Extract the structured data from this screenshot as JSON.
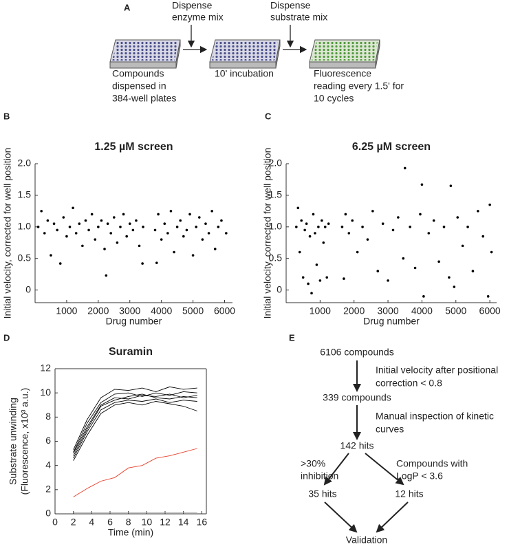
{
  "panel_a": {
    "label": "A",
    "dispense_1": [
      "Dispense",
      "enzyme mix"
    ],
    "dispense_2": [
      "Dispense",
      "substrate mix"
    ],
    "step_1": [
      "Compounds",
      "dispensed in",
      "384-well plates"
    ],
    "step_2": [
      "10' incubation"
    ],
    "step_3": [
      "Fluorescence",
      "reading every 1.5' for",
      "10 cycles"
    ]
  },
  "chart_data": [
    {
      "type": "scatter",
      "panel": "B",
      "title": "1.25 µM screen",
      "x_label": "Drug number",
      "y_label": "Initial velocity, corrected for well position",
      "color": "#000000",
      "x": [
        100,
        200,
        300,
        400,
        500,
        600,
        700,
        800,
        900,
        1000,
        1100,
        1200,
        1300,
        1400,
        1500,
        1600,
        1700,
        1800,
        1900,
        2000,
        2100,
        2200,
        2250,
        2300,
        2400,
        2500,
        2600,
        2700,
        2800,
        2900,
        3000,
        3100,
        3200,
        3300,
        3400,
        3420,
        3800,
        3850,
        3900,
        4000,
        4100,
        4200,
        4300,
        4400,
        4500,
        4600,
        4700,
        4800,
        4900,
        5000,
        5100,
        5200,
        5300,
        5400,
        5500,
        5600,
        5700,
        5800,
        5900,
        6050
      ],
      "values": [
        1.0,
        1.25,
        0.9,
        1.1,
        0.55,
        1.05,
        0.95,
        0.42,
        1.15,
        0.85,
        1.0,
        1.3,
        0.9,
        1.05,
        0.7,
        1.1,
        0.95,
        1.2,
        0.8,
        1.0,
        1.1,
        0.65,
        0.23,
        1.05,
        0.9,
        1.15,
        0.75,
        1.0,
        1.2,
        0.85,
        1.05,
        0.95,
        1.1,
        0.7,
        0.42,
        1.0,
        0.95,
        0.43,
        1.2,
        0.8,
        1.05,
        0.9,
        1.25,
        0.6,
        1.0,
        1.1,
        0.85,
        0.95,
        1.2,
        0.55,
        1.0,
        1.15,
        0.8,
        1.05,
        0.9,
        1.25,
        0.65,
        1.0,
        1.1,
        0.9
      ],
      "xlim": [
        0,
        6250
      ],
      "xticks": [
        1000,
        2000,
        3000,
        4000,
        5000,
        6000
      ],
      "ylim": [
        -0.2,
        2.0
      ],
      "yticks": [
        0,
        0.5,
        {
          "value": 1,
          "label": "1.0"
        },
        1.5,
        {
          "value": 2,
          "label": "2.0"
        }
      ]
    },
    {
      "type": "scatter",
      "panel": "C",
      "title": "6.25 µM screen",
      "x_label": "Drug number",
      "y_label": "Initial velocity, corrected for well position",
      "color": "#000000",
      "x": [
        300,
        350,
        400,
        450,
        500,
        550,
        600,
        650,
        700,
        750,
        800,
        850,
        900,
        950,
        1000,
        1050,
        1100,
        1150,
        1200,
        1250,
        1650,
        1700,
        1750,
        1850,
        1950,
        2100,
        2250,
        2400,
        2550,
        2700,
        2850,
        3000,
        3150,
        3300,
        3450,
        3500,
        3650,
        3800,
        3950,
        4000,
        4050,
        4200,
        4350,
        4500,
        4650,
        4800,
        4850,
        4950,
        5050,
        5200,
        5350,
        5500,
        5650,
        5800,
        5950,
        6000,
        6050
      ],
      "values": [
        1.0,
        1.3,
        0.6,
        1.1,
        0.2,
        0.95,
        1.05,
        0.1,
        0.85,
        -0.05,
        1.2,
        0.9,
        0.4,
        1.0,
        0.15,
        1.1,
        0.75,
        1.0,
        0.2,
        1.05,
        1.0,
        0.18,
        1.2,
        0.9,
        1.1,
        0.6,
        1.0,
        0.8,
        1.25,
        0.3,
        1.05,
        0.15,
        0.95,
        1.15,
        0.5,
        1.93,
        1.0,
        0.35,
        1.2,
        1.67,
        -0.1,
        0.9,
        1.1,
        0.45,
        1.0,
        0.2,
        1.65,
        0.05,
        1.15,
        0.7,
        1.0,
        0.3,
        1.25,
        0.85,
        -0.1,
        1.35,
        0.6
      ],
      "xlim": [
        0,
        6200
      ],
      "xticks": [
        1000,
        2000,
        3000,
        4000,
        5000,
        6000
      ],
      "ylim": [
        -0.2,
        2.0
      ],
      "yticks": [
        0,
        0.5,
        {
          "value": 1,
          "label": "1.0"
        },
        1.5,
        {
          "value": 2,
          "label": "2.0"
        }
      ]
    },
    {
      "type": "line",
      "panel": "D",
      "title": "Suramin",
      "x_label": "Time (min)",
      "y_label": [
        "Substrate unwinding",
        "(Fluorescence, x10³ a.u.)"
      ],
      "x": [
        2,
        3.5,
        5,
        6.5,
        8,
        9.5,
        11,
        12.5,
        14,
        15.5
      ],
      "series": [
        {
          "color": "#000000",
          "values": [
            5.0,
            7.2,
            9.0,
            9.6,
            9.5,
            9.8,
            9.7,
            9.9,
            9.6,
            9.8
          ]
        },
        {
          "color": "#000000",
          "values": [
            4.6,
            6.8,
            8.6,
            9.2,
            9.4,
            9.3,
            9.5,
            9.2,
            9.4,
            9.3
          ]
        },
        {
          "color": "#000000",
          "values": [
            5.3,
            7.8,
            9.6,
            10.3,
            10.2,
            10.4,
            10.1,
            10.5,
            10.3,
            10.4
          ]
        },
        {
          "color": "#000000",
          "values": [
            4.4,
            6.5,
            8.3,
            9.0,
            9.2,
            9.0,
            9.3,
            9.1,
            8.9,
            8.5
          ]
        },
        {
          "color": "#000000",
          "values": [
            5.1,
            7.5,
            9.2,
            9.9,
            10.0,
            9.7,
            10.0,
            9.8,
            10.1,
            10.0
          ]
        },
        {
          "color": "#000000",
          "values": [
            4.8,
            7.0,
            8.9,
            9.4,
            9.7,
            9.9,
            9.6,
            9.5,
            9.7,
            9.6
          ]
        },
        {
          "color": "#e8402a",
          "values": [
            1.4,
            2.1,
            2.7,
            3.0,
            3.8,
            4.0,
            4.6,
            4.8,
            5.1,
            5.4
          ]
        },
        {
          "color": "#999999",
          "values": [
            0.1,
            0.1,
            0.1,
            0.1,
            0.1,
            0.1,
            0.1,
            0.1,
            0.1,
            0.1
          ]
        }
      ],
      "xlim": [
        0,
        16.5
      ],
      "xticks": [
        0,
        2,
        4,
        6,
        8,
        10,
        12,
        14,
        16
      ],
      "ylim": [
        0,
        12
      ],
      "yticks": [
        0,
        2,
        4,
        6,
        8,
        10,
        12
      ]
    }
  ],
  "panel_e": {
    "label": "E",
    "start": "6106 compounds",
    "filter_1": [
      "Initial velocity after positional",
      "correction < 0.8"
    ],
    "after_1": "339 compounds",
    "filter_2": [
      "Manual inspection of kinetic",
      "curves"
    ],
    "after_2": "142 hits",
    "branch_left": [
      ">30%",
      "inhibition"
    ],
    "branch_right": [
      "Compounds with",
      "LogP < 3.6"
    ],
    "left_result": "35 hits",
    "right_result": "12 hits",
    "end": "Validation"
  }
}
